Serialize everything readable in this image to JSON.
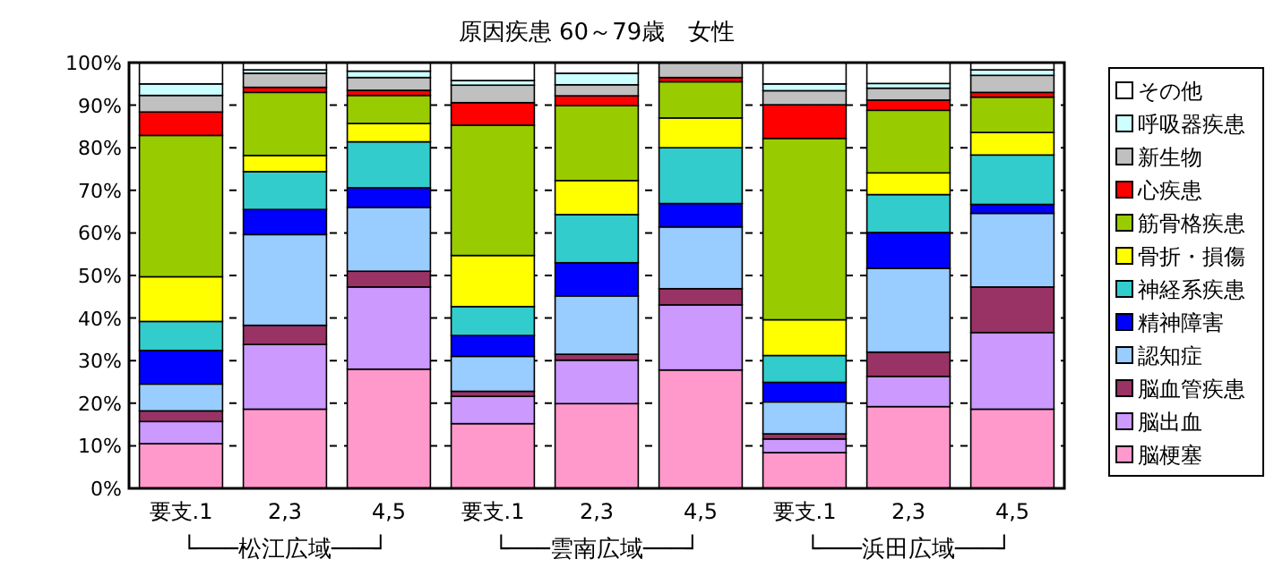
{
  "chart_data": {
    "type": "bar",
    "stacked": true,
    "title": "原因疾患 60～79歳　女性",
    "categories": [
      "要支.1",
      "2,3",
      "4,5",
      "要支.1",
      "2,3",
      "4,5",
      "要支.1",
      "2,3",
      "4,5"
    ],
    "annotations": [
      "└───松江広域───┘",
      "└───雲南広域───┘",
      "└───浜田広域───┘"
    ],
    "ylim": [
      0,
      100
    ],
    "yticks": [
      {
        "value": 0,
        "label": "0%"
      },
      {
        "value": 10,
        "label": "10%"
      },
      {
        "value": 20,
        "label": "20%"
      },
      {
        "value": 30,
        "label": "30%"
      },
      {
        "value": 40,
        "label": "40%"
      },
      {
        "value": 50,
        "label": "50%"
      },
      {
        "value": 60,
        "label": "60%"
      },
      {
        "value": 70,
        "label": "70%"
      },
      {
        "value": 80,
        "label": "80%"
      },
      {
        "value": 90,
        "label": "90%"
      },
      {
        "value": 100,
        "label": "100%"
      }
    ],
    "grid": "y",
    "legend": "right",
    "series": [
      {
        "name": "脳梗塞",
        "color": "#ff99cc",
        "values": [
          10.5,
          18.6,
          28.0,
          15.2,
          19.9,
          27.8,
          8.4,
          19.2,
          18.6
        ]
      },
      {
        "name": "脳出血",
        "color": "#cc99ff",
        "values": [
          5.2,
          15.2,
          19.3,
          6.4,
          10.2,
          15.3,
          3.2,
          7.1,
          18.0
        ]
      },
      {
        "name": "脳血管疾患",
        "color": "#993366",
        "values": [
          2.5,
          4.5,
          3.7,
          1.2,
          1.4,
          3.8,
          1.2,
          5.7,
          10.7
        ]
      },
      {
        "name": "認知症",
        "color": "#99ccff",
        "values": [
          6.3,
          21.3,
          15.0,
          8.2,
          13.7,
          14.5,
          7.5,
          19.7,
          17.3
        ]
      },
      {
        "name": "精神障害",
        "color": "#0000ff",
        "values": [
          7.9,
          5.9,
          4.6,
          4.9,
          7.8,
          5.5,
          4.6,
          8.4,
          2.1
        ]
      },
      {
        "name": "神経系疾患",
        "color": "#33cccc",
        "values": [
          6.8,
          8.9,
          10.8,
          6.8,
          11.3,
          13.1,
          6.3,
          8.9,
          11.6
        ]
      },
      {
        "name": "骨折・損傷",
        "color": "#ffff00",
        "values": [
          10.5,
          3.8,
          4.3,
          12.0,
          8.0,
          7.0,
          8.4,
          5.1,
          5.3
        ]
      },
      {
        "name": "筋骨格疾患",
        "color": "#99cc00",
        "values": [
          33.2,
          14.8,
          6.6,
          30.6,
          17.6,
          8.5,
          42.6,
          14.7,
          8.3
        ]
      },
      {
        "name": "心疾患",
        "color": "#ff0000",
        "values": [
          5.5,
          1.2,
          1.2,
          5.3,
          2.3,
          1.0,
          7.9,
          2.4,
          1.1
        ]
      },
      {
        "name": "新生物",
        "color": "#c0c0c0",
        "values": [
          3.9,
          3.3,
          3.0,
          4.1,
          2.6,
          3.5,
          3.3,
          2.8,
          4.0
        ]
      },
      {
        "name": "呼吸器疾患",
        "color": "#ccffff",
        "values": [
          2.7,
          0.8,
          1.5,
          1.1,
          2.7,
          0,
          1.6,
          1.1,
          1.3
        ]
      },
      {
        "name": "その他",
        "color": "#ffffff",
        "values": [
          5.0,
          1.7,
          2.0,
          4.2,
          2.5,
          0,
          5.0,
          4.9,
          1.7
        ]
      }
    ]
  }
}
